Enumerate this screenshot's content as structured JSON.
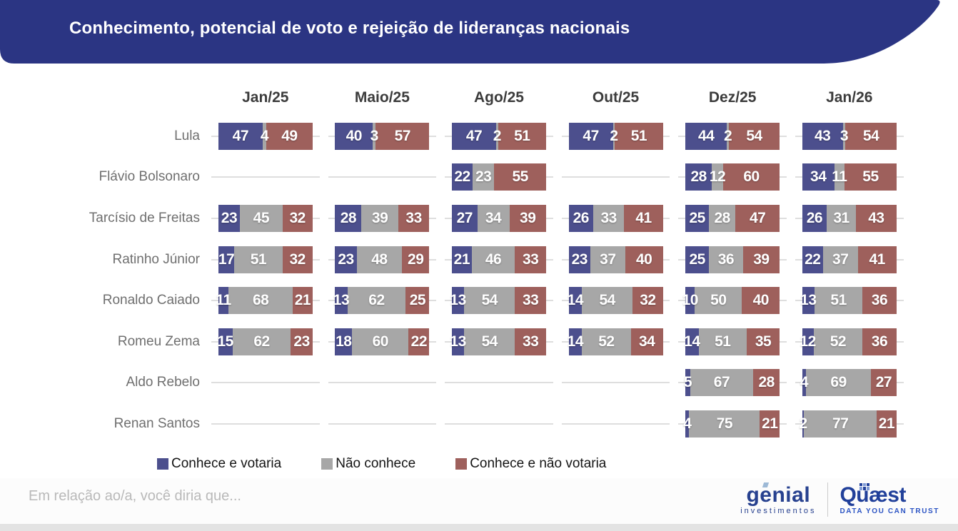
{
  "header": {
    "title": "Conhecimento, potencial de voto e rejeição de lideranças nacionais",
    "background_color": "#2b3583"
  },
  "chart_data": {
    "type": "bar",
    "subtype": "horizontal-stacked-small-multiples",
    "title": "Conhecimento, potencial de voto e rejeição de lideranças nacionais",
    "columns": [
      "Jan/25",
      "Maio/25",
      "Ago/25",
      "Out/25",
      "Dez/25",
      "Jan/26"
    ],
    "series_labels": [
      "Conhece e votaria",
      "Não conhece",
      "Conhece e não votaria"
    ],
    "series_colors": [
      "#4c4f8d",
      "#a7a7a7",
      "#9e605c"
    ],
    "unit": "percent",
    "xlim": [
      0,
      100
    ],
    "legend_position": "bottom",
    "grid": false,
    "rows": [
      {
        "name": "Lula",
        "values": [
          [
            47,
            4,
            49
          ],
          [
            40,
            3,
            57
          ],
          [
            47,
            2,
            51
          ],
          [
            47,
            2,
            51
          ],
          [
            44,
            2,
            54
          ],
          [
            43,
            3,
            54
          ]
        ]
      },
      {
        "name": "Flávio Bolsonaro",
        "values": [
          null,
          null,
          [
            22,
            23,
            55
          ],
          null,
          [
            28,
            12,
            60
          ],
          [
            34,
            11,
            55
          ]
        ]
      },
      {
        "name": "Tarcísio de Freitas",
        "values": [
          [
            23,
            45,
            32
          ],
          [
            28,
            39,
            33
          ],
          [
            27,
            34,
            39
          ],
          [
            26,
            33,
            41
          ],
          [
            25,
            28,
            47
          ],
          [
            26,
            31,
            43
          ]
        ]
      },
      {
        "name": "Ratinho Júnior",
        "values": [
          [
            17,
            51,
            32
          ],
          [
            23,
            48,
            29
          ],
          [
            21,
            46,
            33
          ],
          [
            23,
            37,
            40
          ],
          [
            25,
            36,
            39
          ],
          [
            22,
            37,
            41
          ]
        ]
      },
      {
        "name": "Ronaldo Caiado",
        "values": [
          [
            11,
            68,
            21
          ],
          [
            13,
            62,
            25
          ],
          [
            13,
            54,
            33
          ],
          [
            14,
            54,
            32
          ],
          [
            10,
            50,
            40
          ],
          [
            13,
            51,
            36
          ]
        ]
      },
      {
        "name": "Romeu Zema",
        "values": [
          [
            15,
            62,
            23
          ],
          [
            18,
            60,
            22
          ],
          [
            13,
            54,
            33
          ],
          [
            14,
            52,
            34
          ],
          [
            14,
            51,
            35
          ],
          [
            12,
            52,
            36
          ]
        ]
      },
      {
        "name": "Aldo Rebelo",
        "values": [
          null,
          null,
          null,
          null,
          [
            5,
            67,
            28
          ],
          [
            4,
            69,
            27
          ]
        ]
      },
      {
        "name": "Renan Santos",
        "values": [
          null,
          null,
          null,
          null,
          [
            4,
            75,
            21
          ],
          [
            2,
            77,
            21
          ]
        ]
      }
    ]
  },
  "legend": {
    "items": [
      {
        "label": "Conhece e votaria",
        "color": "#4c4f8d"
      },
      {
        "label": "Não conhece",
        "color": "#a7a7a7"
      },
      {
        "label": "Conhece e não votaria",
        "color": "#9e605c"
      }
    ]
  },
  "footer": {
    "question": "Em relação ao/a, você diria que...",
    "logos": {
      "genial": {
        "name": "genial",
        "sub": "investimentos"
      },
      "quaest": {
        "name": "Quæst",
        "sub": "DATA YOU CAN TRUST"
      }
    }
  }
}
